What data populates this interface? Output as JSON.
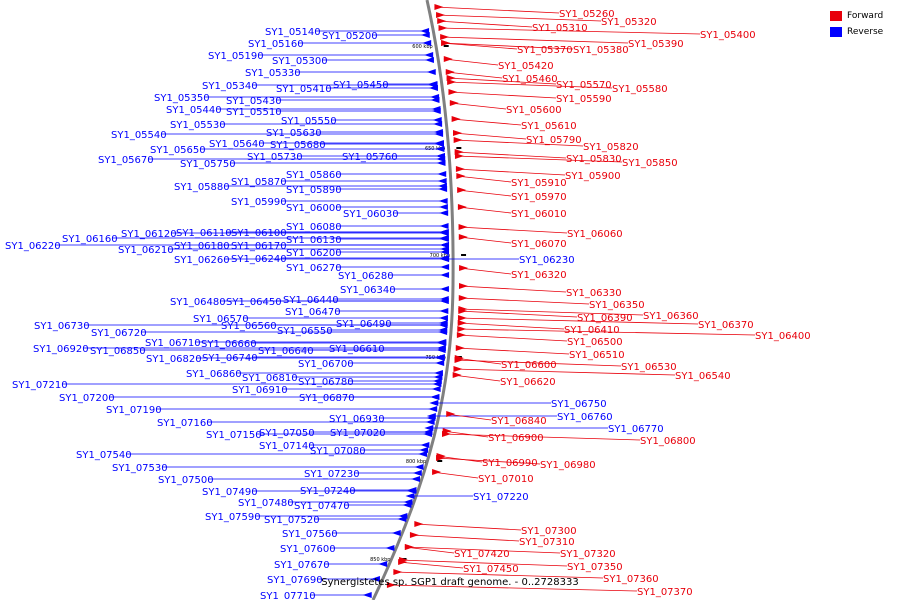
{
  "legend": [
    {
      "label": "Forward",
      "color": "#e8000b"
    },
    {
      "label": "Reverse",
      "color": "#0000ff"
    }
  ],
  "caption": "Synergistetes sp. SGP1 draft genome. - 0..2728333",
  "ruler": [
    "600 kbp",
    "650 kbp",
    "700 kbp",
    "750 kbp",
    "800 kbp",
    "850 kbp"
  ],
  "reverse_genes": [
    "SY1_05140",
    "SY1_05200",
    "SY1_05160",
    "SY1_05190",
    "SY1_05300",
    "SY1_05330",
    "SY1_05340",
    "SY1_05410",
    "SY1_05450",
    "SY1_05350",
    "SY1_05430",
    "SY1_05440",
    "SY1_05510",
    "SY1_05530",
    "SY1_05550",
    "SY1_05540",
    "SY1_05630",
    "SY1_05640",
    "SY1_05680",
    "SY1_05650",
    "SY1_05730",
    "SY1_05760",
    "SY1_05670",
    "SY1_05750",
    "SY1_05860",
    "SY1_05870",
    "SY1_05880",
    "SY1_05890",
    "SY1_05990",
    "SY1_06000",
    "SY1_06030",
    "SY1_06080",
    "SY1_06120",
    "SY1_06110",
    "SY1_06100",
    "SY1_06160",
    "SY1_06130",
    "SY1_06220",
    "SY1_06210",
    "SY1_06180",
    "SY1_06170",
    "SY1_06200",
    "SY1_06260",
    "SY1_06240",
    "SY1_06270",
    "SY1_06230",
    "SY1_06280",
    "SY1_06340",
    "SY1_06440",
    "SY1_06480",
    "SY1_06450",
    "SY1_06470",
    "SY1_06570",
    "SY1_06490",
    "SY1_06730",
    "SY1_06560",
    "SY1_06550",
    "SY1_06720",
    "SY1_06710",
    "SY1_06660",
    "SY1_06610",
    "SY1_06920",
    "SY1_06850",
    "SY1_06640",
    "SY1_06740",
    "SY1_06820",
    "SY1_06700",
    "SY1_06860",
    "SY1_06810",
    "SY1_06780",
    "SY1_07210",
    "SY1_06910",
    "SY1_06870",
    "SY1_07200",
    "SY1_07190",
    "SY1_06750",
    "SY1_06760",
    "SY1_06930",
    "SY1_07160",
    "SY1_07020",
    "SY1_06770",
    "SY1_07150",
    "SY1_07050",
    "SY1_07140",
    "SY1_07080",
    "SY1_07540",
    "SY1_07530",
    "SY1_07230",
    "SY1_07500",
    "SY1_07240",
    "SY1_07490",
    "SY1_07220",
    "SY1_07480",
    "SY1_07470",
    "SY1_07590",
    "SY1_07520",
    "SY1_07560",
    "SY1_07600",
    "SY1_07670",
    "SY1_07690",
    "SY1_07710"
  ],
  "forward_genes": [
    "SY1_05260",
    "SY1_05310",
    "SY1_05320",
    "SY1_05400",
    "SY1_05390",
    "SY1_05370",
    "SY1_05380",
    "SY1_05420",
    "SY1_05460",
    "SY1_05570",
    "SY1_05580",
    "SY1_05590",
    "SY1_05600",
    "SY1_05610",
    "SY1_05790",
    "SY1_05820",
    "SY1_05830",
    "SY1_05850",
    "SY1_05900",
    "SY1_05910",
    "SY1_05970",
    "SY1_06010",
    "SY1_06060",
    "SY1_06070",
    "SY1_06320",
    "SY1_06330",
    "SY1_06350",
    "SY1_06360",
    "SY1_06390",
    "SY1_06370",
    "SY1_06410",
    "SY1_06400",
    "SY1_06500",
    "SY1_06510",
    "SY1_06530",
    "SY1_06600",
    "SY1_06540",
    "SY1_06620",
    "SY1_06840",
    "SY1_06800",
    "SY1_06900",
    "SY1_06990",
    "SY1_06980",
    "SY1_07010",
    "SY1_07300",
    "SY1_07310",
    "SY1_07320",
    "SY1_07420",
    "SY1_07350",
    "SY1_07450",
    "SY1_07360",
    "SY1_07370"
  ]
}
